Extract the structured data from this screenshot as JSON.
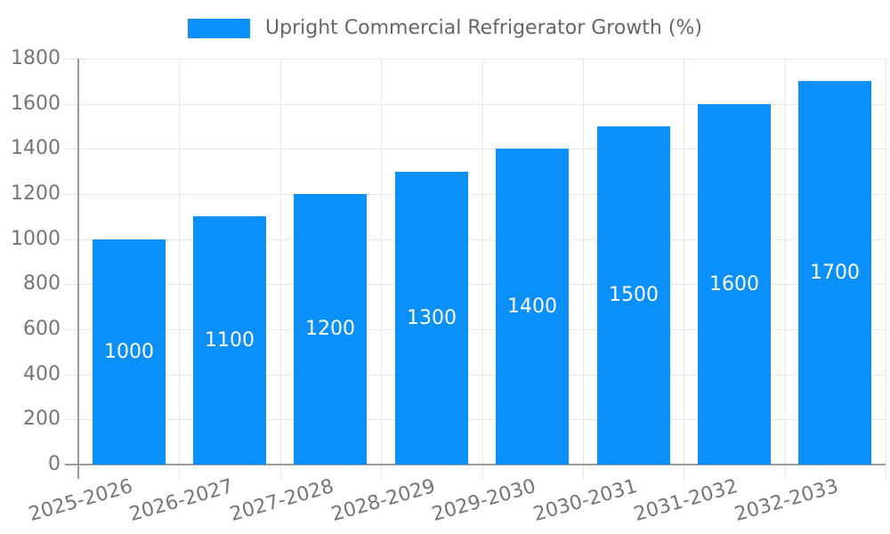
{
  "chart_data": {
    "type": "bar",
    "legend": "Upright Commercial Refrigerator Growth (%)",
    "legend_position": "top-center",
    "categories": [
      "2025-2026",
      "2026-2027",
      "2027-2028",
      "2028-2029",
      "2029-2030",
      "2030-2031",
      "2031-2032",
      "2032-2033"
    ],
    "values": [
      1000,
      1100,
      1200,
      1300,
      1400,
      1500,
      1600,
      1700
    ],
    "title": "",
    "xlabel": "",
    "ylabel": "",
    "ylim": [
      0,
      1800
    ],
    "ytick_step": 200,
    "grid": true,
    "colors": {
      "bar": "#0a90f8",
      "bar_label": "#ffffff",
      "grid": "#e7e7e7",
      "axis": "#9b9b9b",
      "tick_label": "#757575",
      "legend_text": "#666666",
      "background": "#ffffff"
    }
  }
}
